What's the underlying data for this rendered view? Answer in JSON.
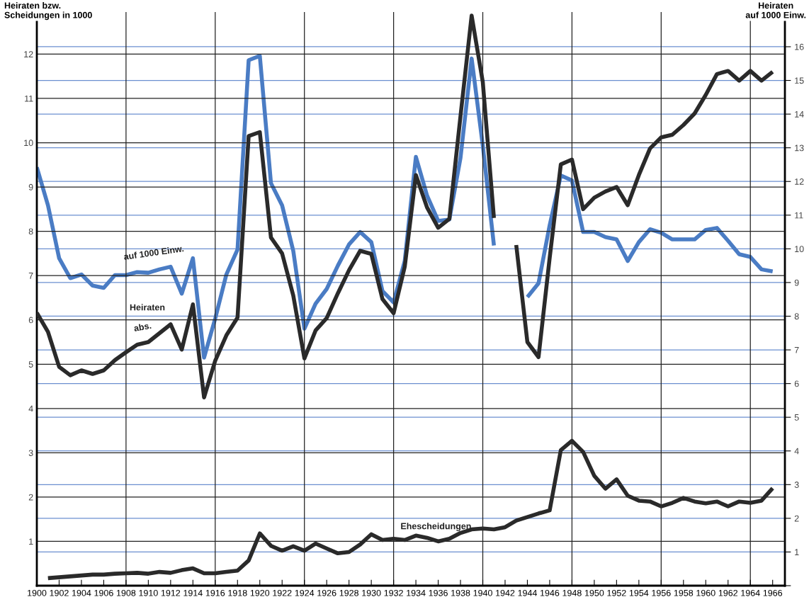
{
  "chart_data": {
    "type": "line",
    "ylabel": "Heiraten bzw.\nScheidungen in 1000",
    "y2label": "Heiraten\nauf 1000 Einw.",
    "x": [
      1900,
      1901,
      1902,
      1903,
      1904,
      1905,
      1906,
      1907,
      1908,
      1909,
      1910,
      1911,
      1912,
      1913,
      1914,
      1915,
      1916,
      1917,
      1918,
      1919,
      1920,
      1921,
      1922,
      1923,
      1924,
      1925,
      1926,
      1927,
      1928,
      1929,
      1930,
      1931,
      1932,
      1933,
      1934,
      1935,
      1936,
      1937,
      1938,
      1939,
      1940,
      1941,
      1942,
      1943,
      1944,
      1945,
      1946,
      1947,
      1948,
      1949,
      1950,
      1951,
      1952,
      1953,
      1954,
      1955,
      1956,
      1957,
      1958,
      1959,
      1960,
      1961,
      1962,
      1963,
      1964,
      1965,
      1966
    ],
    "series": [
      {
        "name": "auf 1000 Einw.",
        "color": "#4a7cc4",
        "axis": "y2",
        "values": [
          12.42,
          11.29,
          9.72,
          9.13,
          9.24,
          8.91,
          8.84,
          9.22,
          9.22,
          9.31,
          9.29,
          9.39,
          9.47,
          8.67,
          9.72,
          6.77,
          7.93,
          9.24,
          9.98,
          15.6,
          15.73,
          11.95,
          11.29,
          9.94,
          7.63,
          8.37,
          8.81,
          9.5,
          10.13,
          10.5,
          10.2,
          8.75,
          8.41,
          9.64,
          12.73,
          11.58,
          10.83,
          10.87,
          12.7,
          15.65,
          13.07,
          10.1,
          null,
          null,
          8.57,
          8.98,
          10.7,
          12.18,
          12.03,
          10.5,
          10.5,
          10.35,
          10.28,
          9.64,
          10.2,
          10.58,
          10.48,
          10.28,
          10.28,
          10.28,
          10.56,
          10.62,
          10.24,
          9.84,
          9.76,
          9.39,
          9.33
        ]
      },
      {
        "name": "abs.",
        "color": "#2a2a2a",
        "axis": "y",
        "values": [
          6.16,
          5.73,
          4.94,
          4.75,
          4.86,
          4.78,
          4.86,
          5.09,
          5.27,
          5.44,
          5.5,
          5.7,
          5.9,
          5.33,
          6.35,
          4.25,
          5.08,
          5.65,
          6.05,
          10.15,
          10.24,
          7.86,
          7.5,
          6.55,
          5.13,
          5.76,
          6.04,
          6.6,
          7.12,
          7.56,
          7.49,
          6.47,
          6.15,
          7.2,
          9.27,
          8.54,
          8.08,
          8.28,
          10.6,
          12.87,
          11.37,
          8.3,
          null,
          7.69,
          5.5,
          5.16,
          7.4,
          9.51,
          9.62,
          8.5,
          8.76,
          8.9,
          9.0,
          8.59,
          9.27,
          9.87,
          10.12,
          10.18,
          10.4,
          10.66,
          11.08,
          11.55,
          11.62,
          11.4,
          11.62,
          11.4,
          11.6
        ]
      },
      {
        "name": "Ehescheidungen",
        "color": "#2a2a2a",
        "axis": "y",
        "values": [
          null,
          0.17,
          0.19,
          0.21,
          0.23,
          0.25,
          0.25,
          0.27,
          0.28,
          0.29,
          0.27,
          0.31,
          0.29,
          0.35,
          0.39,
          0.28,
          0.28,
          0.31,
          0.34,
          0.57,
          1.18,
          0.9,
          0.79,
          0.89,
          0.79,
          0.95,
          0.84,
          0.73,
          0.76,
          0.93,
          1.16,
          1.03,
          1.06,
          1.03,
          1.13,
          1.08,
          1.0,
          1.06,
          1.19,
          1.27,
          1.29,
          1.27,
          1.32,
          1.47,
          1.55,
          1.63,
          1.7,
          3.06,
          3.27,
          3.02,
          2.48,
          2.19,
          2.4,
          2.03,
          1.92,
          1.9,
          1.79,
          1.87,
          1.98,
          1.9,
          1.86,
          1.9,
          1.79,
          1.9,
          1.87,
          1.92,
          2.2
        ]
      }
    ],
    "xlim": [
      1900,
      1967.1
    ],
    "xticks": [
      1900,
      1902,
      1904,
      1906,
      1908,
      1910,
      1912,
      1914,
      1916,
      1918,
      1920,
      1922,
      1924,
      1926,
      1928,
      1930,
      1932,
      1934,
      1936,
      1938,
      1940,
      1942,
      1944,
      1946,
      1948,
      1950,
      1952,
      1954,
      1956,
      1958,
      1960,
      1962,
      1964,
      1966
    ],
    "ylim": [
      0,
      12.95
    ],
    "yticks": [
      {
        "value": 0,
        "label": null
      },
      1,
      2,
      3,
      4,
      5,
      6,
      7,
      8,
      9,
      10,
      11,
      12
    ],
    "y2lim": [
      0,
      17.03
    ],
    "y2ticks": [
      {
        "value": 0,
        "label": null
      },
      1,
      2,
      3,
      4,
      5,
      6,
      7,
      8,
      9,
      10,
      11,
      12,
      13,
      14,
      15,
      16
    ],
    "grid": "y",
    "ref_lines": [
      {
        "axis": "x",
        "value": 1908,
        "color": "#222222"
      },
      {
        "axis": "x",
        "value": 1916,
        "color": "#222222"
      },
      {
        "axis": "x",
        "value": 1924,
        "color": "#222222"
      },
      {
        "axis": "x",
        "value": 1932,
        "color": "#222222"
      },
      {
        "axis": "x",
        "value": 1940,
        "color": "#222222"
      },
      {
        "axis": "x",
        "value": 1948,
        "color": "#222222"
      },
      {
        "axis": "x",
        "value": 1956,
        "color": "#222222"
      },
      {
        "axis": "x",
        "value": 1964,
        "color": "#222222"
      }
    ],
    "annotations": [
      "Heiraten"
    ]
  }
}
